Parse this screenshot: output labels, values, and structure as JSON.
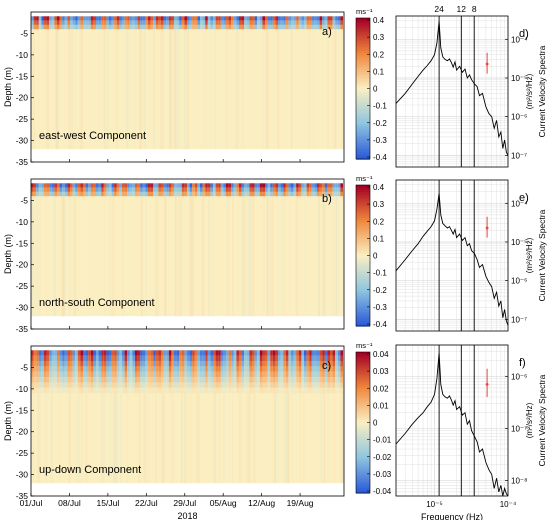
{
  "figure": {
    "year_label": "2018"
  },
  "colors": {
    "blue_end": "#2c5bd9",
    "mid": "#fbefc2",
    "red_end": "#a50026",
    "spectrum_line": "#000000",
    "error_bar": "#e8463c"
  },
  "chart_data": [
    {
      "panel_id": "a)",
      "type": "heatmap",
      "label": "east-west Component",
      "xlabel": "",
      "ylabel": "Depth (m)",
      "x_tick_labels": [
        "01/Jul",
        "08/Jul",
        "15/Jul",
        "22/Jul",
        "29/Jul",
        "05/Aug",
        "12/Aug",
        "19/Aug"
      ],
      "ylim": [
        -35,
        0
      ],
      "y_ticks": [
        -5,
        -10,
        -15,
        -20,
        -25,
        -30,
        -35
      ],
      "data_depth_range": [
        -32,
        -1
      ],
      "colorbar": {
        "unit": "ms⁻¹",
        "ticks": [
          0.4,
          0.3,
          0.2,
          0.1,
          0,
          -0.1,
          -0.2,
          -0.3,
          -0.4
        ],
        "range": [
          -0.4,
          0.4
        ]
      },
      "pattern": "strong alternating positive/negative velocities near surface (0 to -3 m), near zero below"
    },
    {
      "panel_id": "b)",
      "type": "heatmap",
      "label": "north-south Component",
      "xlabel": "",
      "ylabel": "Depth (m)",
      "x_tick_labels": [
        "01/Jul",
        "08/Jul",
        "15/Jul",
        "22/Jul",
        "29/Jul",
        "05/Aug",
        "12/Aug",
        "19/Aug"
      ],
      "ylim": [
        -35,
        0
      ],
      "y_ticks": [
        -5,
        -10,
        -15,
        -20,
        -25,
        -30,
        -35
      ],
      "data_depth_range": [
        -32,
        -1
      ],
      "colorbar": {
        "unit": "ms⁻¹",
        "ticks": [
          0.4,
          0.3,
          0.2,
          0.1,
          0,
          -0.1,
          -0.2,
          -0.3,
          -0.4
        ],
        "range": [
          -0.4,
          0.4
        ]
      },
      "pattern": "strong alternating positive/negative velocities near surface (0 to -3 m), near zero below"
    },
    {
      "panel_id": "c)",
      "type": "heatmap",
      "label": "up-down Component",
      "xlabel": "2018",
      "ylabel": "Depth (m)",
      "x_tick_labels": [
        "01/Jul",
        "08/Jul",
        "15/Jul",
        "22/Jul",
        "29/Jul",
        "05/Aug",
        "12/Aug",
        "19/Aug"
      ],
      "ylim": [
        -35,
        0
      ],
      "y_ticks": [
        -5,
        -10,
        -15,
        -20,
        -25,
        -30,
        -35
      ],
      "data_depth_range": [
        -32,
        -1
      ],
      "colorbar": {
        "unit": "ms⁻¹",
        "ticks": [
          0.04,
          0.03,
          0.02,
          0.01,
          0,
          -0.01,
          -0.02,
          -0.03,
          -0.04
        ],
        "range": [
          -0.04,
          0.04
        ]
      },
      "pattern": "alternating velocities concentrated 0 to -10 m, weak below"
    },
    {
      "panel_id": "d)",
      "type": "line",
      "xlabel": "",
      "ylabel": "Current Velocity Spectra",
      "yunit": "(m²/s²/Hz)",
      "x_scale": "log",
      "y_scale": "log",
      "xlim": [
        3e-06,
        0.0001
      ],
      "ylim": [
        5e-08,
        0.0004
      ],
      "y_tick_labels": [
        "10⁻⁴",
        "10⁻⁵",
        "10⁻⁶",
        "10⁻⁷"
      ],
      "y_tick_values": [
        0.0001,
        1e-05,
        1e-06,
        1e-07
      ],
      "x_tick_labels": [
        "10⁻⁵",
        "10⁻⁴"
      ],
      "x_tick_values": [
        1e-05,
        0.0001
      ],
      "period_lines": {
        "labels": [
          "24",
          "12",
          "8"
        ],
        "freqs": [
          1.157e-05,
          2.315e-05,
          3.472e-05
        ]
      },
      "x": [
        3e-06,
        4e-06,
        5e-06,
        6e-06,
        7e-06,
        8e-06,
        9e-06,
        1e-05,
        1.08e-05,
        1.157e-05,
        1.22e-05,
        1.3e-05,
        1.4e-05,
        1.5e-05,
        1.6e-05,
        1.7e-05,
        1.8e-05,
        1.9e-05,
        2e-05,
        2.2e-05,
        2.4e-05,
        2.6e-05,
        2.8e-05,
        3e-05,
        3.2e-05,
        3.5e-05,
        3.8e-05,
        4.1e-05,
        4.5e-05,
        5e-05,
        5.5e-05,
        6e-05,
        6.5e-05,
        7e-05,
        7.5e-05,
        8e-05,
        8.5e-05,
        9e-05,
        9.5e-05,
        0.0001
      ],
      "values": [
        2.2e-06,
        4e-06,
        7e-06,
        1.1e-05,
        1.6e-05,
        2.1e-05,
        2.8e-05,
        4e-05,
        8e-05,
        0.00029,
        6e-05,
        3.5e-05,
        3e-05,
        2.8e-05,
        3.1e-05,
        2.5e-05,
        1.9e-05,
        2.6e-05,
        1.6e-05,
        2e-05,
        1.4e-05,
        1.7e-05,
        1e-05,
        1.2e-05,
        9e-06,
        7e-06,
        6e-06,
        3.5e-06,
        4e-06,
        1.8e-06,
        1.2e-06,
        1e-06,
        5e-07,
        8e-07,
        3e-07,
        4e-07,
        1.5e-07,
        2.5e-07,
        1.2e-07,
        1e-07
      ],
      "error_bar": {
        "x": 5.2e-05,
        "y_low": 1.3e-05,
        "y_high": 4.5e-05,
        "y_mid": 2.3e-05
      }
    },
    {
      "panel_id": "e)",
      "type": "line",
      "xlabel": "",
      "ylabel": "Current Velocity Spectra",
      "yunit": "(m²/s²/Hz)",
      "x_scale": "log",
      "y_scale": "log",
      "xlim": [
        3e-06,
        0.0001
      ],
      "ylim": [
        5e-08,
        0.0004
      ],
      "y_tick_labels": [
        "10⁻⁴",
        "10⁻⁵",
        "10⁻⁶",
        "10⁻⁷"
      ],
      "y_tick_values": [
        0.0001,
        1e-05,
        1e-06,
        1e-07
      ],
      "x_tick_labels": [
        "10⁻⁵",
        "10⁻⁴"
      ],
      "x_tick_values": [
        1e-05,
        0.0001
      ],
      "period_lines": {
        "labels": [
          "24",
          "12",
          "8"
        ],
        "freqs": [
          1.157e-05,
          2.315e-05,
          3.472e-05
        ]
      },
      "x": [
        3e-06,
        4e-06,
        5e-06,
        6e-06,
        7e-06,
        8e-06,
        9e-06,
        1e-05,
        1.08e-05,
        1.157e-05,
        1.22e-05,
        1.3e-05,
        1.4e-05,
        1.5e-05,
        1.6e-05,
        1.7e-05,
        1.8e-05,
        1.9e-05,
        2e-05,
        2.2e-05,
        2.4e-05,
        2.6e-05,
        2.8e-05,
        3e-05,
        3.2e-05,
        3.5e-05,
        3.8e-05,
        4.1e-05,
        4.5e-05,
        5e-05,
        5.5e-05,
        6e-05,
        6.5e-05,
        7e-05,
        7.5e-05,
        8e-05,
        8.5e-05,
        9e-05,
        9.5e-05,
        0.0001
      ],
      "values": [
        1.8e-06,
        3.5e-06,
        6e-06,
        9e-06,
        1.4e-05,
        1.9e-05,
        2.5e-05,
        3.5e-05,
        7e-05,
        0.00018,
        5e-05,
        3e-05,
        2.6e-05,
        2.3e-05,
        2.5e-05,
        2e-05,
        1.6e-05,
        2.1e-05,
        1.3e-05,
        1.6e-05,
        1.1e-05,
        1.3e-05,
        8e-06,
        9e-06,
        6e-06,
        5e-06,
        3.5e-06,
        2.2e-06,
        2.6e-06,
        1.3e-06,
        9e-07,
        7e-07,
        3.5e-07,
        5e-07,
        2.2e-07,
        3e-07,
        1.1e-07,
        1.8e-07,
        9e-08,
        7e-08
      ],
      "error_bar": {
        "x": 5.2e-05,
        "y_low": 1.3e-05,
        "y_high": 4.5e-05,
        "y_mid": 2.3e-05
      }
    },
    {
      "panel_id": "f)",
      "type": "line",
      "xlabel": "Frequency (Hz)",
      "ylabel": "Current Velocity Spectra",
      "yunit": "(m²/s²/Hz)",
      "x_scale": "log",
      "y_scale": "log",
      "xlim": [
        3e-06,
        0.0001
      ],
      "ylim": [
        5e-09,
        4e-06
      ],
      "y_tick_labels": [
        "10⁻⁶",
        "10⁻⁷",
        "10⁻⁸"
      ],
      "y_tick_values": [
        1e-06,
        1e-07,
        1e-08
      ],
      "x_tick_labels": [
        "10⁻⁵",
        "10⁻⁴"
      ],
      "x_tick_values": [
        1e-05,
        0.0001
      ],
      "period_lines": {
        "labels": [
          "24",
          "12",
          "8"
        ],
        "freqs": [
          1.157e-05,
          2.315e-05,
          3.472e-05
        ]
      },
      "x": [
        3e-06,
        4e-06,
        5e-06,
        6e-06,
        7e-06,
        8e-06,
        9e-06,
        1e-05,
        1.08e-05,
        1.157e-05,
        1.22e-05,
        1.3e-05,
        1.4e-05,
        1.5e-05,
        1.6e-05,
        1.7e-05,
        1.8e-05,
        1.9e-05,
        2e-05,
        2.2e-05,
        2.4e-05,
        2.6e-05,
        2.8e-05,
        3e-05,
        3.2e-05,
        3.5e-05,
        3.8e-05,
        4.1e-05,
        4.5e-05,
        5e-05,
        5.5e-05,
        6e-05,
        6.5e-05,
        7e-05,
        7.5e-05,
        8e-05,
        8.5e-05,
        9e-05,
        9.5e-05,
        0.0001
      ],
      "values": [
        5e-08,
        8e-08,
        1.2e-07,
        1.6e-07,
        2e-07,
        2.6e-07,
        3.2e-07,
        4.5e-07,
        9e-07,
        2.8e-06,
        7e-07,
        4.5e-07,
        4e-07,
        3.8e-07,
        4.2e-07,
        3.5e-07,
        2.8e-07,
        3.4e-07,
        2.3e-07,
        2.6e-07,
        1.8e-07,
        2e-07,
        1.2e-07,
        1.4e-07,
        9e-08,
        7e-08,
        5.5e-08,
        3.5e-08,
        4e-08,
        2.2e-08,
        1.6e-08,
        1.3e-08,
        7e-09,
        1.1e-08,
        6e-09,
        8e-09,
        5e-09,
        7e-09,
        5.5e-09,
        5e-09
      ],
      "error_bar": {
        "x": 5.2e-05,
        "y_low": 4e-07,
        "y_high": 1.4e-06,
        "y_mid": 7e-07
      }
    }
  ]
}
